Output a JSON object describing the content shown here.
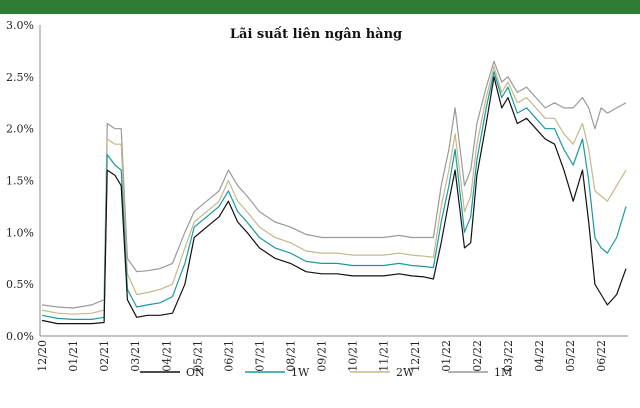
{
  "chart_data": {
    "type": "line",
    "title": "Lãi suất liên ngân hàng",
    "xlabel": "",
    "ylabel": "",
    "ylim": [
      0,
      3.0
    ],
    "yticks": [
      "0.0%",
      "0.5%",
      "1.0%",
      "1.5%",
      "2.0%",
      "2.5%",
      "3.0%"
    ],
    "x_tick_labels": [
      "12/20",
      "01/21",
      "02/21",
      "03/21",
      "04/21",
      "05/21",
      "06/21",
      "07/21",
      "08/21",
      "09/21",
      "10/21",
      "11/21",
      "12/21",
      "01/22",
      "02/22",
      "03/22",
      "04/22",
      "05/22",
      "06/22"
    ],
    "grid": false,
    "legend_position": "bottom",
    "header_bar_color": "#2e7d32",
    "series": [
      {
        "name": "ON",
        "color": "#111111",
        "points": [
          [
            0,
            0.15
          ],
          [
            0.5,
            0.12
          ],
          [
            1,
            0.12
          ],
          [
            1.6,
            0.12
          ],
          [
            2,
            0.13
          ],
          [
            2.1,
            1.6
          ],
          [
            2.35,
            1.55
          ],
          [
            2.55,
            1.45
          ],
          [
            2.75,
            0.35
          ],
          [
            3.05,
            0.18
          ],
          [
            3.4,
            0.2
          ],
          [
            3.8,
            0.2
          ],
          [
            4.2,
            0.22
          ],
          [
            4.6,
            0.5
          ],
          [
            4.9,
            0.95
          ],
          [
            5.3,
            1.05
          ],
          [
            5.7,
            1.15
          ],
          [
            6.0,
            1.3
          ],
          [
            6.3,
            1.1
          ],
          [
            6.6,
            1.0
          ],
          [
            7.0,
            0.85
          ],
          [
            7.5,
            0.75
          ],
          [
            8.0,
            0.7
          ],
          [
            8.5,
            0.62
          ],
          [
            9.0,
            0.6
          ],
          [
            9.5,
            0.6
          ],
          [
            10.0,
            0.58
          ],
          [
            10.5,
            0.58
          ],
          [
            11.0,
            0.58
          ],
          [
            11.5,
            0.6
          ],
          [
            11.9,
            0.58
          ],
          [
            12.3,
            0.57
          ],
          [
            12.6,
            0.55
          ],
          [
            12.85,
            0.9
          ],
          [
            13.1,
            1.3
          ],
          [
            13.3,
            1.6
          ],
          [
            13.6,
            0.85
          ],
          [
            13.8,
            0.9
          ],
          [
            14.0,
            1.55
          ],
          [
            14.3,
            2.05
          ],
          [
            14.55,
            2.5
          ],
          [
            14.8,
            2.2
          ],
          [
            15.0,
            2.3
          ],
          [
            15.3,
            2.05
          ],
          [
            15.6,
            2.1
          ],
          [
            15.9,
            2.0
          ],
          [
            16.2,
            1.9
          ],
          [
            16.5,
            1.85
          ],
          [
            16.8,
            1.6
          ],
          [
            17.1,
            1.3
          ],
          [
            17.4,
            1.6
          ],
          [
            17.6,
            1.1
          ],
          [
            17.8,
            0.5
          ],
          [
            18.0,
            0.4
          ],
          [
            18.2,
            0.3
          ],
          [
            18.5,
            0.4
          ],
          [
            18.8,
            0.65
          ]
        ]
      },
      {
        "name": "1W",
        "color": "#1a9aa0",
        "points": [
          [
            0,
            0.2
          ],
          [
            0.5,
            0.17
          ],
          [
            1,
            0.16
          ],
          [
            1.6,
            0.16
          ],
          [
            2,
            0.18
          ],
          [
            2.1,
            1.75
          ],
          [
            2.35,
            1.65
          ],
          [
            2.55,
            1.6
          ],
          [
            2.75,
            0.45
          ],
          [
            3.05,
            0.28
          ],
          [
            3.4,
            0.3
          ],
          [
            3.8,
            0.32
          ],
          [
            4.2,
            0.38
          ],
          [
            4.6,
            0.7
          ],
          [
            4.9,
            1.05
          ],
          [
            5.3,
            1.15
          ],
          [
            5.7,
            1.25
          ],
          [
            6.0,
            1.4
          ],
          [
            6.3,
            1.2
          ],
          [
            6.6,
            1.1
          ],
          [
            7.0,
            0.95
          ],
          [
            7.5,
            0.85
          ],
          [
            8.0,
            0.8
          ],
          [
            8.5,
            0.72
          ],
          [
            9.0,
            0.7
          ],
          [
            9.5,
            0.7
          ],
          [
            10.0,
            0.68
          ],
          [
            10.5,
            0.68
          ],
          [
            11.0,
            0.68
          ],
          [
            11.5,
            0.7
          ],
          [
            11.9,
            0.68
          ],
          [
            12.3,
            0.67
          ],
          [
            12.6,
            0.66
          ],
          [
            12.85,
            1.1
          ],
          [
            13.1,
            1.45
          ],
          [
            13.3,
            1.8
          ],
          [
            13.6,
            1.0
          ],
          [
            13.8,
            1.15
          ],
          [
            14.0,
            1.7
          ],
          [
            14.3,
            2.2
          ],
          [
            14.55,
            2.55
          ],
          [
            14.8,
            2.3
          ],
          [
            15.0,
            2.4
          ],
          [
            15.3,
            2.15
          ],
          [
            15.6,
            2.2
          ],
          [
            15.9,
            2.1
          ],
          [
            16.2,
            2.0
          ],
          [
            16.5,
            2.0
          ],
          [
            16.8,
            1.8
          ],
          [
            17.1,
            1.65
          ],
          [
            17.4,
            1.9
          ],
          [
            17.6,
            1.5
          ],
          [
            17.8,
            0.95
          ],
          [
            18.0,
            0.85
          ],
          [
            18.2,
            0.8
          ],
          [
            18.5,
            0.95
          ],
          [
            18.8,
            1.25
          ]
        ]
      },
      {
        "name": "2W",
        "color": "#c5b98a",
        "points": [
          [
            0,
            0.25
          ],
          [
            0.5,
            0.22
          ],
          [
            1,
            0.21
          ],
          [
            1.6,
            0.22
          ],
          [
            2,
            0.25
          ],
          [
            2.1,
            1.9
          ],
          [
            2.35,
            1.85
          ],
          [
            2.55,
            1.85
          ],
          [
            2.75,
            0.6
          ],
          [
            3.05,
            0.4
          ],
          [
            3.4,
            0.42
          ],
          [
            3.8,
            0.45
          ],
          [
            4.2,
            0.5
          ],
          [
            4.6,
            0.85
          ],
          [
            4.9,
            1.1
          ],
          [
            5.3,
            1.2
          ],
          [
            5.7,
            1.3
          ],
          [
            6.0,
            1.5
          ],
          [
            6.3,
            1.3
          ],
          [
            6.6,
            1.2
          ],
          [
            7.0,
            1.05
          ],
          [
            7.5,
            0.95
          ],
          [
            8.0,
            0.9
          ],
          [
            8.5,
            0.82
          ],
          [
            9.0,
            0.8
          ],
          [
            9.5,
            0.8
          ],
          [
            10.0,
            0.78
          ],
          [
            10.5,
            0.78
          ],
          [
            11.0,
            0.78
          ],
          [
            11.5,
            0.8
          ],
          [
            11.9,
            0.78
          ],
          [
            12.3,
            0.77
          ],
          [
            12.6,
            0.76
          ],
          [
            12.85,
            1.25
          ],
          [
            13.1,
            1.6
          ],
          [
            13.3,
            1.95
          ],
          [
            13.6,
            1.2
          ],
          [
            13.8,
            1.35
          ],
          [
            14.0,
            1.85
          ],
          [
            14.3,
            2.3
          ],
          [
            14.55,
            2.6
          ],
          [
            14.8,
            2.35
          ],
          [
            15.0,
            2.45
          ],
          [
            15.3,
            2.25
          ],
          [
            15.6,
            2.3
          ],
          [
            15.9,
            2.2
          ],
          [
            16.2,
            2.1
          ],
          [
            16.5,
            2.1
          ],
          [
            16.8,
            1.95
          ],
          [
            17.1,
            1.85
          ],
          [
            17.4,
            2.05
          ],
          [
            17.6,
            1.8
          ],
          [
            17.8,
            1.4
          ],
          [
            18.0,
            1.35
          ],
          [
            18.2,
            1.3
          ],
          [
            18.5,
            1.45
          ],
          [
            18.8,
            1.6
          ]
        ]
      },
      {
        "name": "1M",
        "color": "#9a9a9a",
        "points": [
          [
            0,
            0.3
          ],
          [
            0.5,
            0.28
          ],
          [
            1,
            0.27
          ],
          [
            1.6,
            0.3
          ],
          [
            2,
            0.35
          ],
          [
            2.1,
            2.05
          ],
          [
            2.35,
            2.0
          ],
          [
            2.55,
            2.0
          ],
          [
            2.75,
            0.75
          ],
          [
            3.05,
            0.62
          ],
          [
            3.4,
            0.63
          ],
          [
            3.8,
            0.65
          ],
          [
            4.2,
            0.7
          ],
          [
            4.6,
            1.0
          ],
          [
            4.9,
            1.2
          ],
          [
            5.3,
            1.3
          ],
          [
            5.7,
            1.4
          ],
          [
            6.0,
            1.6
          ],
          [
            6.3,
            1.45
          ],
          [
            6.6,
            1.35
          ],
          [
            7.0,
            1.2
          ],
          [
            7.5,
            1.1
          ],
          [
            8.0,
            1.05
          ],
          [
            8.5,
            0.98
          ],
          [
            9.0,
            0.95
          ],
          [
            9.5,
            0.95
          ],
          [
            10.0,
            0.95
          ],
          [
            10.5,
            0.95
          ],
          [
            11.0,
            0.95
          ],
          [
            11.5,
            0.97
          ],
          [
            11.9,
            0.95
          ],
          [
            12.3,
            0.95
          ],
          [
            12.6,
            0.95
          ],
          [
            12.85,
            1.45
          ],
          [
            13.1,
            1.8
          ],
          [
            13.3,
            2.2
          ],
          [
            13.6,
            1.45
          ],
          [
            13.8,
            1.6
          ],
          [
            14.0,
            2.05
          ],
          [
            14.3,
            2.4
          ],
          [
            14.55,
            2.65
          ],
          [
            14.8,
            2.45
          ],
          [
            15.0,
            2.5
          ],
          [
            15.3,
            2.35
          ],
          [
            15.6,
            2.4
          ],
          [
            15.9,
            2.3
          ],
          [
            16.2,
            2.2
          ],
          [
            16.5,
            2.25
          ],
          [
            16.8,
            2.2
          ],
          [
            17.1,
            2.2
          ],
          [
            17.4,
            2.3
          ],
          [
            17.6,
            2.2
          ],
          [
            17.8,
            2.0
          ],
          [
            18.0,
            2.2
          ],
          [
            18.2,
            2.15
          ],
          [
            18.5,
            2.2
          ],
          [
            18.8,
            2.25
          ]
        ]
      }
    ]
  }
}
